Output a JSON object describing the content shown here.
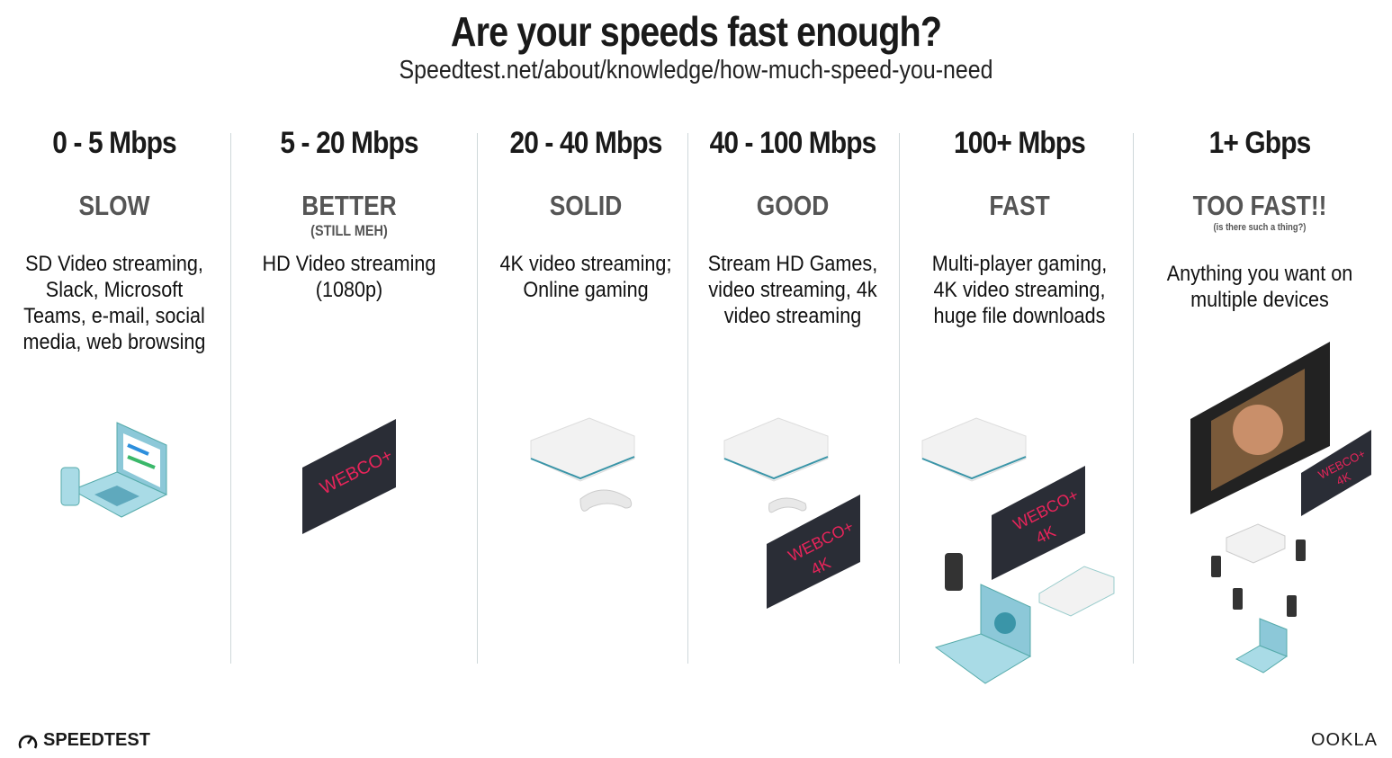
{
  "header": {
    "title": "Are your speeds fast enough?",
    "subtitle": "Speedtest.net/about/knowledge/how-much-speed-you-need"
  },
  "columns": [
    {
      "speed": "0 - 5 Mbps",
      "label": "SLOW",
      "sublabel": "",
      "desc": "SD Video streaming, Slack, Microsoft Teams, e-mail, social media, web browsing"
    },
    {
      "speed": "5 - 20 Mbps",
      "label": "BETTER",
      "sublabel": "(STILL MEH)",
      "desc": "HD Video streaming (1080p)"
    },
    {
      "speed": "20 - 40 Mbps",
      "label": "SOLID",
      "sublabel": "",
      "desc": "4K video streaming; Online gaming"
    },
    {
      "speed": "40 - 100 Mbps",
      "label": "GOOD",
      "sublabel": "",
      "desc": "Stream HD Games, video streaming, 4k video streaming"
    },
    {
      "speed": "100+ Mbps",
      "label": "FAST",
      "sublabel": "",
      "desc": "Multi-player gaming, 4K video streaming, huge file downloads"
    },
    {
      "speed": "1+ Gbps",
      "label": "TOO FAST!!",
      "sublabel": "(is there such a thing?)",
      "desc": "Anything you want on multiple devices"
    }
  ],
  "tv_brand": "WEBCO+",
  "tv_4k": "4K",
  "footer": {
    "left_logo": "SPEEDTEST",
    "right_logo": "OOKLA"
  },
  "colors": {
    "tv": "#2a2d36",
    "tv_text": "#e8245a",
    "device_blue": "#8cc8d8",
    "console": "#f2f2f2",
    "divider": "#cfd8da"
  }
}
